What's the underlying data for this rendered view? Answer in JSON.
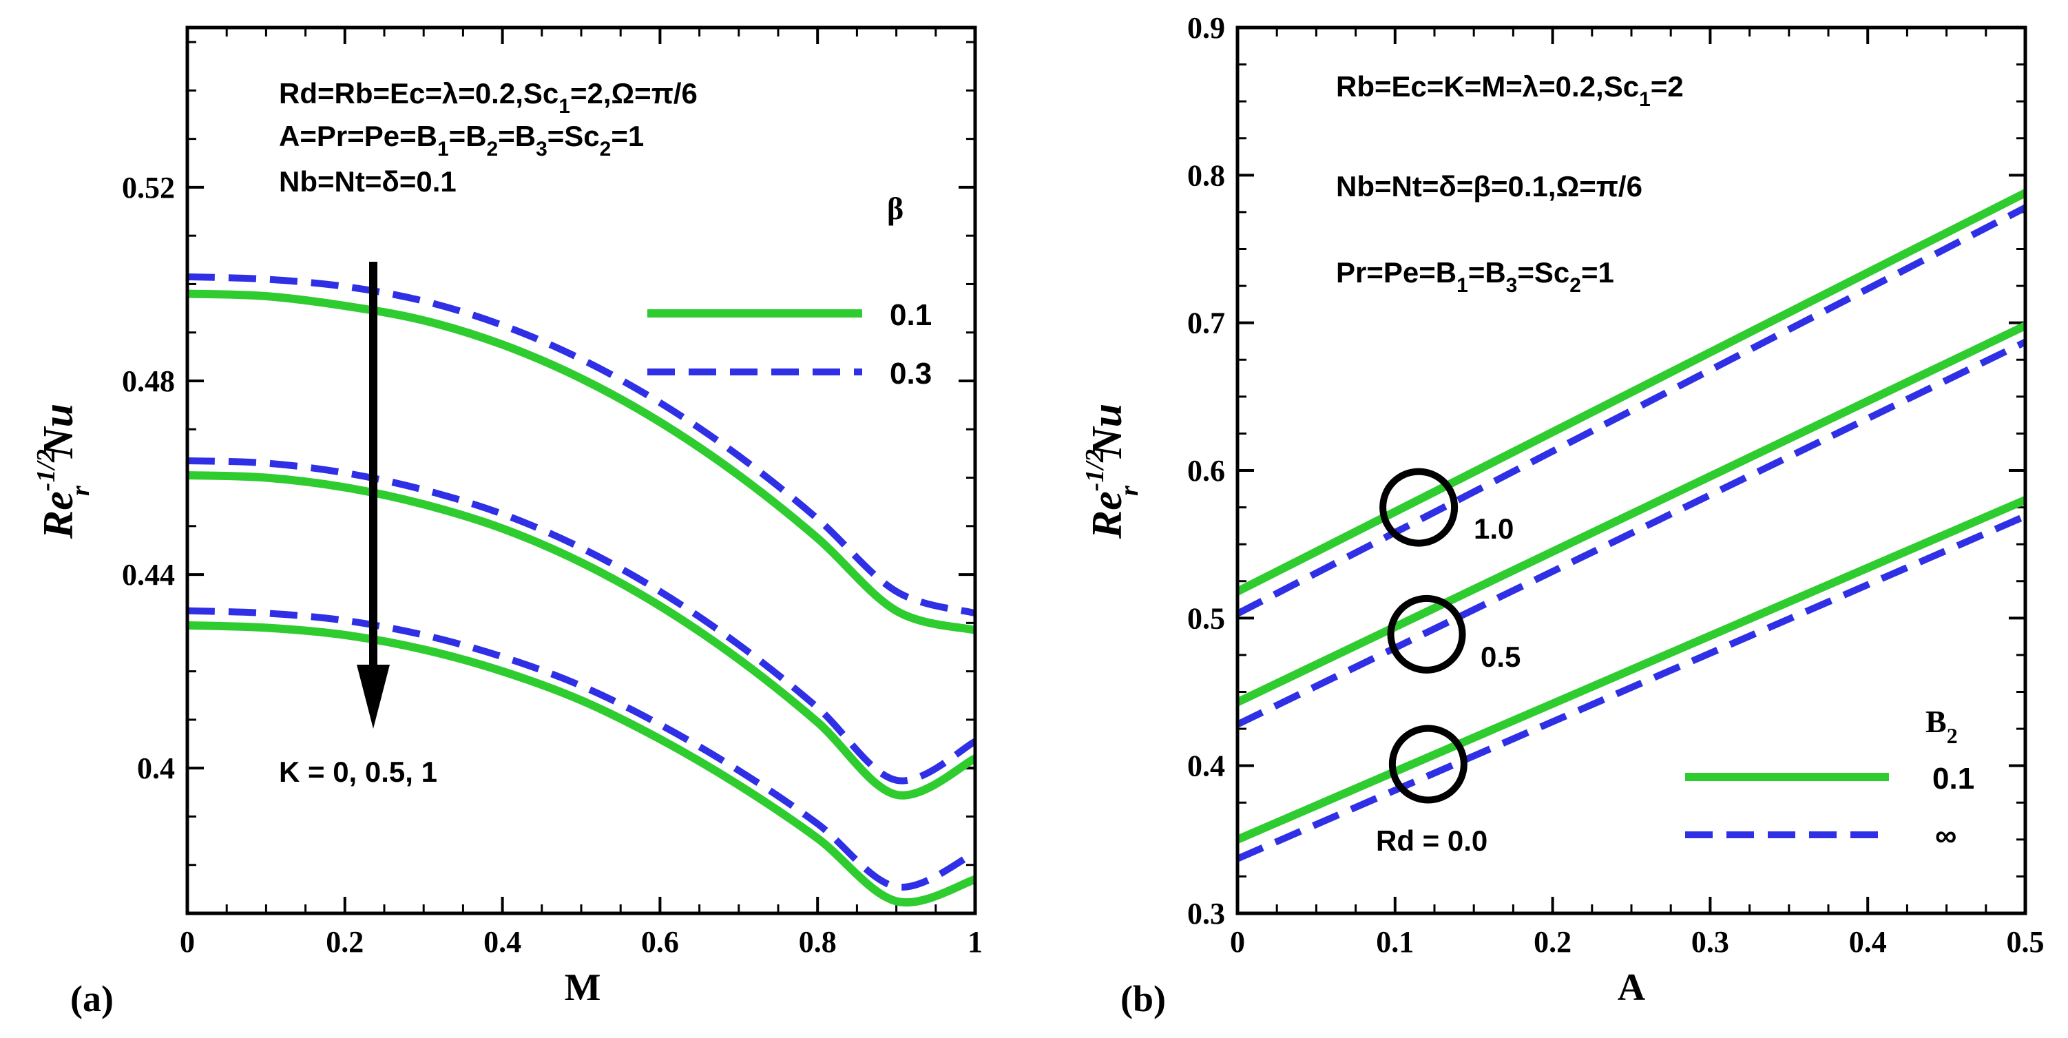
{
  "colors": {
    "green": "#2fcc2f",
    "blue": "#2f2fe6",
    "axis": "#000000",
    "background": "#ffffff"
  },
  "chart_data": [
    {
      "type": "line",
      "panel_label": "(a)",
      "xlabel": "M",
      "ylabel": {
        "base": "Re",
        "sup": "-1/2",
        "sub": "r",
        "tail": "Nu"
      },
      "xlim": [
        0,
        1
      ],
      "ylim": [
        0.37,
        0.553
      ],
      "xticks": [
        0,
        0.2,
        0.4,
        0.6,
        0.8,
        1
      ],
      "xtick_labels": [
        "0",
        "0.2",
        "0.4",
        "0.6",
        "0.8",
        "1"
      ],
      "yticks": [
        0.4,
        0.44,
        0.48,
        0.52
      ],
      "ytick_labels": [
        "0.4",
        "0.44",
        "0.48",
        "0.52"
      ],
      "annotations": {
        "line1": {
          "pre": "Rd=Rb=Ec=λ=0.2,Sc",
          "sub": "1",
          "post": "=2,Ω=π/6"
        },
        "line2": {
          "pre": "A=Pr=Pe=B",
          "sub1": "1",
          "mid1": "=B",
          "sub2": "2",
          "mid2": "=B",
          "sub3": "3",
          "mid3": "=Sc",
          "sub4": "2",
          "post": "=1"
        },
        "line3": "Nb=Nt=δ=0.1",
        "arrow_label": "K = 0, 0.5, 1"
      },
      "legend": {
        "title": "β",
        "entries": [
          {
            "label": "0.1",
            "style": "solid"
          },
          {
            "label": "0.3",
            "style": "dashed"
          }
        ]
      },
      "series": [
        {
          "name": "K=0, β=0.1",
          "style": "solid",
          "x": [
            0,
            0.1,
            0.2,
            0.3,
            0.4,
            0.5,
            0.6,
            0.7,
            0.8,
            0.9,
            1.0
          ],
          "y": [
            0.498,
            0.4975,
            0.4955,
            0.4925,
            0.4875,
            0.4805,
            0.4715,
            0.4605,
            0.4475,
            0.4325,
            0.4285
          ]
        },
        {
          "name": "K=0, β=0.3",
          "style": "dashed",
          "x": [
            0,
            0.1,
            0.2,
            0.3,
            0.4,
            0.5,
            0.6,
            0.7,
            0.8,
            0.9,
            1.0
          ],
          "y": [
            0.5015,
            0.501,
            0.4995,
            0.4965,
            0.4915,
            0.4845,
            0.4755,
            0.4645,
            0.4515,
            0.4365,
            0.432
          ]
        },
        {
          "name": "K=0.5, β=0.1",
          "style": "solid",
          "x": [
            0,
            0.1,
            0.2,
            0.3,
            0.4,
            0.5,
            0.6,
            0.7,
            0.8,
            0.9,
            1.0
          ],
          "y": [
            0.4605,
            0.46,
            0.458,
            0.4545,
            0.4495,
            0.4425,
            0.4335,
            0.4225,
            0.4095,
            0.3945,
            0.402
          ]
        },
        {
          "name": "K=0.5, β=0.3",
          "style": "dashed",
          "x": [
            0,
            0.1,
            0.2,
            0.3,
            0.4,
            0.5,
            0.6,
            0.7,
            0.8,
            0.9,
            1.0
          ],
          "y": [
            0.4635,
            0.463,
            0.461,
            0.4575,
            0.4525,
            0.4455,
            0.4365,
            0.4255,
            0.4125,
            0.3975,
            0.4055
          ]
        },
        {
          "name": "K=1, β=0.1",
          "style": "solid",
          "x": [
            0,
            0.1,
            0.2,
            0.3,
            0.4,
            0.5,
            0.6,
            0.7,
            0.8,
            0.9,
            1.0
          ],
          "y": [
            0.4295,
            0.429,
            0.4275,
            0.4245,
            0.42,
            0.414,
            0.406,
            0.3965,
            0.3855,
            0.3725,
            0.377
          ]
        },
        {
          "name": "K=1, β=0.3",
          "style": "dashed",
          "x": [
            0,
            0.1,
            0.2,
            0.3,
            0.4,
            0.5,
            0.6,
            0.7,
            0.8,
            0.9,
            1.0
          ],
          "y": [
            0.4325,
            0.432,
            0.4305,
            0.4275,
            0.423,
            0.417,
            0.409,
            0.3995,
            0.3885,
            0.3755,
            0.3825
          ]
        }
      ]
    },
    {
      "type": "line",
      "panel_label": "(b)",
      "xlabel": "A",
      "ylabel": {
        "base": "Re",
        "sup": "-1/2",
        "sub": "r",
        "tail": "Nu"
      },
      "xlim": [
        0,
        0.5
      ],
      "ylim": [
        0.3,
        0.9
      ],
      "xticks": [
        0,
        0.1,
        0.2,
        0.3,
        0.4,
        0.5
      ],
      "xtick_labels": [
        "0",
        "0.1",
        "0.2",
        "0.3",
        "0.4",
        "0.5"
      ],
      "yticks": [
        0.3,
        0.4,
        0.5,
        0.6,
        0.7,
        0.8,
        0.9
      ],
      "ytick_labels": [
        "0.3",
        "0.4",
        "0.5",
        "0.6",
        "0.7",
        "0.8",
        "0.9"
      ],
      "annotations": {
        "line1": {
          "pre": "Rb=Ec=K=M=λ=0.2,Sc",
          "sub": "1",
          "post": "=2"
        },
        "line2": "Nb=Nt=δ=β=0.1,Ω=π/6",
        "line3": {
          "pre": "Pr=Pe=B",
          "sub1": "1",
          "mid1": "=B",
          "sub2": "3",
          "mid2": "=Sc",
          "sub3": "2",
          "post": "=1"
        },
        "rd_labels": [
          "1.0",
          "0.5",
          "Rd = 0.0"
        ]
      },
      "circle_markers": [
        {
          "x": 0.115,
          "y": 0.575
        },
        {
          "x": 0.12,
          "y": 0.489
        },
        {
          "x": 0.121,
          "y": 0.401
        }
      ],
      "legend": {
        "title": {
          "base": "B",
          "sub": "2"
        },
        "entries": [
          {
            "label": "0.1",
            "style": "solid"
          },
          {
            "label": "∞",
            "style": "dashed"
          }
        ]
      },
      "series": [
        {
          "name": "Rd=1.0, B2=0.1",
          "style": "solid",
          "x": [
            0,
            0.5
          ],
          "y": [
            0.518,
            0.788
          ]
        },
        {
          "name": "Rd=1.0, B2=∞",
          "style": "dashed",
          "x": [
            0,
            0.5
          ],
          "y": [
            0.503,
            0.778
          ]
        },
        {
          "name": "Rd=0.5, B2=0.1",
          "style": "solid",
          "x": [
            0,
            0.5
          ],
          "y": [
            0.443,
            0.698
          ]
        },
        {
          "name": "Rd=0.5, B2=∞",
          "style": "dashed",
          "x": [
            0,
            0.5
          ],
          "y": [
            0.428,
            0.687
          ]
        },
        {
          "name": "Rd=0.0, B2=0.1",
          "style": "solid",
          "x": [
            0,
            0.5
          ],
          "y": [
            0.35,
            0.58
          ]
        },
        {
          "name": "Rd=0.0, B2=∞",
          "style": "dashed",
          "x": [
            0,
            0.5
          ],
          "y": [
            0.337,
            0.569
          ]
        }
      ]
    }
  ]
}
